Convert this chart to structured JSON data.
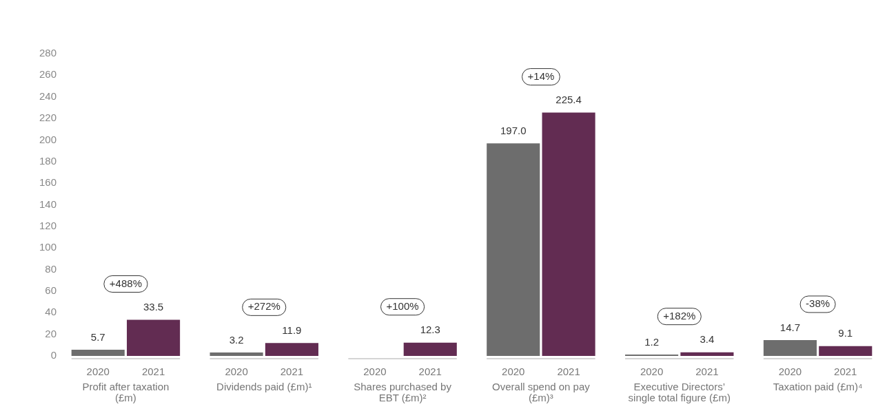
{
  "chart_data": {
    "type": "bar",
    "categories": [
      "Profit after taxation (£m)",
      "Dividends paid (£m)¹",
      "Shares purchased by EBT (£m)²",
      "Overall spend on pay (£m)³",
      "Executive Directors’ single total figure (£m)",
      "Taxation paid (£m)⁴"
    ],
    "series": [
      {
        "name": "2020",
        "color": "#6d6d6d",
        "values": [
          5.7,
          3.2,
          null,
          197.0,
          1.2,
          14.7
        ],
        "value_labels": [
          "5.7",
          "3.2",
          null,
          "197.0",
          "1.2",
          "14.7"
        ]
      },
      {
        "name": "2021",
        "color": "#622c52",
        "values": [
          33.5,
          11.9,
          12.3,
          225.4,
          3.4,
          9.1
        ],
        "value_labels": [
          "33.5",
          "11.9",
          "12.3",
          "225.4",
          "3.4",
          "9.1"
        ]
      }
    ],
    "annotations": [
      "+488%",
      "+272%",
      "+100%",
      "+14%",
      "+182%",
      "-38%"
    ],
    "ylim": [
      0,
      280
    ],
    "yticks": [
      0,
      20,
      40,
      60,
      80,
      100,
      120,
      140,
      160,
      180,
      200,
      220,
      240,
      260,
      280
    ],
    "grid": false,
    "legend": false
  }
}
